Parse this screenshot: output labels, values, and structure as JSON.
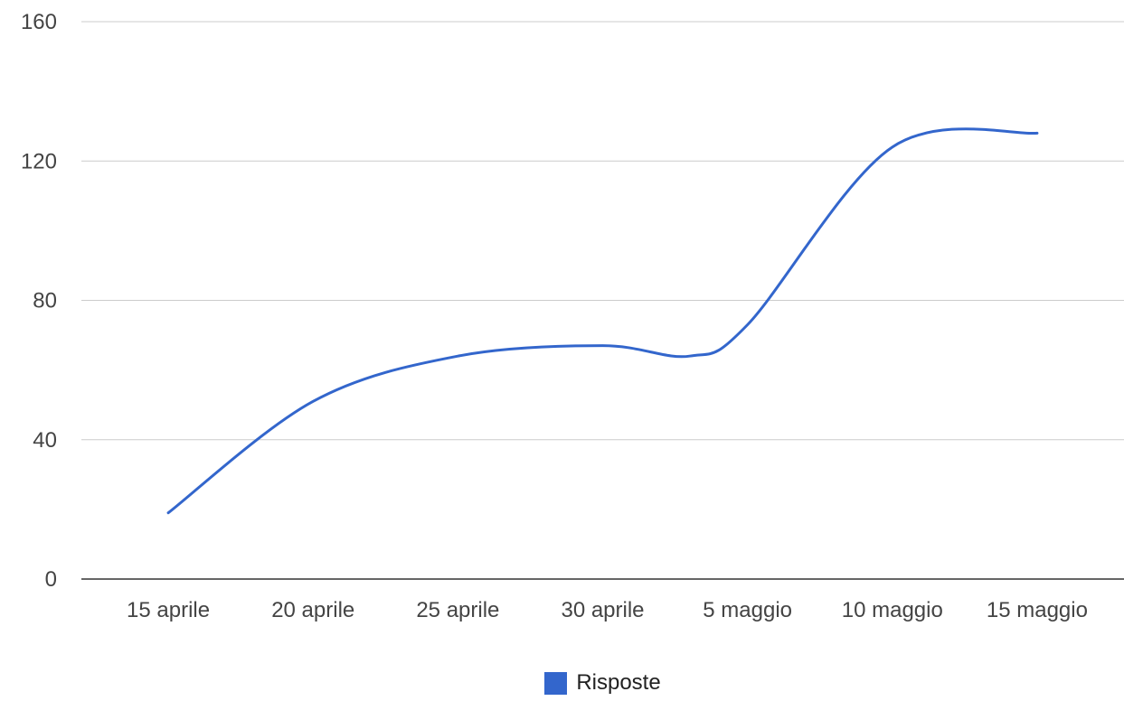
{
  "chart_data": {
    "type": "line",
    "title": "",
    "xlabel": "",
    "ylabel": "",
    "x": [
      "2014-04-15",
      "2014-04-20",
      "2014-04-25",
      "2014-04-30",
      "2014-05-03",
      "2014-05-05",
      "2014-05-10",
      "2014-05-15"
    ],
    "x_tick_labels": [
      "15 aprile",
      "20 aprile",
      "25 aprile",
      "30 aprile",
      "5 maggio",
      "10 maggio",
      "15 maggio"
    ],
    "ylim": [
      0,
      160
    ],
    "y_ticks": [
      0,
      40,
      80,
      120,
      160
    ],
    "y_tick_labels": [
      "0",
      "40",
      "80",
      "120",
      "160"
    ],
    "series": [
      {
        "name": "Risposte",
        "color": "#3366cc",
        "values": [
          19,
          51,
          64,
          67,
          64,
          73,
          124,
          128
        ]
      }
    ],
    "smooth": true,
    "grid": true,
    "legend_position": "bottom"
  },
  "legend": {
    "label": "Risposte",
    "color": "#3366cc"
  }
}
